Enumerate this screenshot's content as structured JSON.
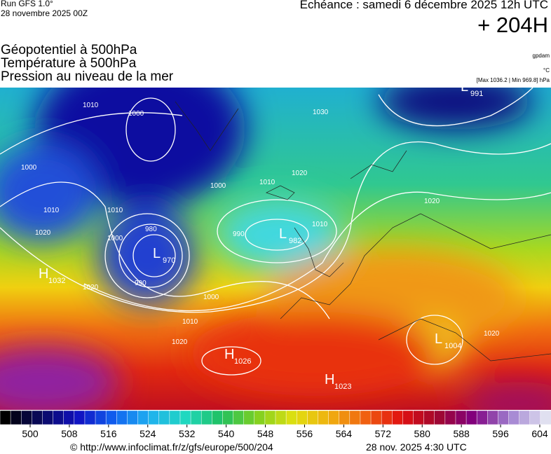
{
  "header": {
    "run": "Run GFS 1.0°",
    "date": "28 novembre 2025 00Z",
    "echeance": "Echéance : samedi 6 décembre 2025 12h UTC",
    "lead": "+ 204H"
  },
  "titles": [
    "Géopotentiel à 500hPa",
    "Température à 500hPa",
    "Pression au niveau de la mer"
  ],
  "units": {
    "geopotential": "gpdam",
    "temperature": "°C",
    "pressure": "[Max 1036.2 | Min 969.8] hPa"
  },
  "centers": [
    {
      "letter": "H",
      "value": "1032"
    },
    {
      "letter": "L",
      "value": "970"
    },
    {
      "letter": "L",
      "value": "982"
    },
    {
      "letter": "H",
      "value": "1026"
    },
    {
      "letter": "H",
      "value": "1023"
    },
    {
      "letter": "L",
      "value": "991"
    },
    {
      "letter": "L",
      "value": "1004"
    }
  ],
  "isobar_labels": [
    "1010",
    "1000",
    "1000",
    "1010",
    "1020",
    "1010",
    "1000",
    "980",
    "990",
    "1020",
    "1000",
    "1010",
    "1020",
    "990",
    "1000",
    "1010",
    "1020",
    "1030",
    "1010",
    "1020",
    "1020"
  ],
  "colorbar": {
    "ticks": [
      500,
      508,
      516,
      524,
      532,
      540,
      548,
      556,
      564,
      572,
      580,
      588,
      596,
      604
    ]
  },
  "footer": {
    "url": "© http://www.infoclimat.fr/z/gfs/europe/500/204",
    "time": "28 nov. 2025  4:30 UTC"
  }
}
